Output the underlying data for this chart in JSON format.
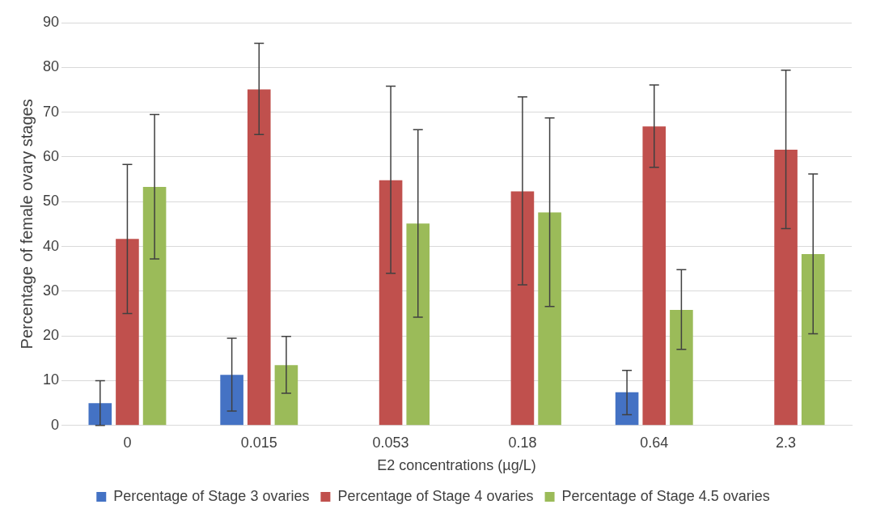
{
  "chart_data": {
    "type": "bar",
    "xlabel": "E2 concentrations (µg/L)",
    "ylabel": "Percentage of female ovary stages",
    "categories": [
      "0",
      "0.015",
      "0.053",
      "0.18",
      "0.64",
      "2.3"
    ],
    "series": [
      {
        "name": "Percentage of Stage 3 ovaries",
        "color": "#4472c4",
        "values": [
          5.0,
          11.3,
          null,
          null,
          7.4,
          null
        ],
        "errors": [
          [
            0,
            10
          ],
          [
            3.2,
            19.5
          ],
          null,
          null,
          [
            2.4,
            12.3
          ],
          null
        ]
      },
      {
        "name": "Percentage of Stage 4 ovaries",
        "color": "#c0504d",
        "values": [
          41.7,
          75.1,
          54.8,
          52.3,
          66.8,
          61.6
        ],
        "errors": [
          [
            25,
            58.3
          ],
          [
            65,
            85.4
          ],
          [
            34,
            75.8
          ],
          [
            31.4,
            73.4
          ],
          [
            57.7,
            76.1
          ],
          [
            44,
            79.4
          ]
        ]
      },
      {
        "name": "Percentage of Stage 4.5 ovaries",
        "color": "#9bbb59",
        "values": [
          53.3,
          13.5,
          45.1,
          47.6,
          25.8,
          38.3
        ],
        "errors": [
          [
            37.2,
            69.5
          ],
          [
            7.2,
            19.9
          ],
          [
            24.2,
            66.1
          ],
          [
            26.6,
            68.7
          ],
          [
            17,
            34.8
          ],
          [
            20.5,
            56.2
          ]
        ]
      }
    ],
    "ylim": [
      0,
      90
    ],
    "yticks": [
      0,
      10,
      20,
      30,
      40,
      50,
      60,
      70,
      80,
      90
    ],
    "grid": "y",
    "legend": "bottom"
  }
}
